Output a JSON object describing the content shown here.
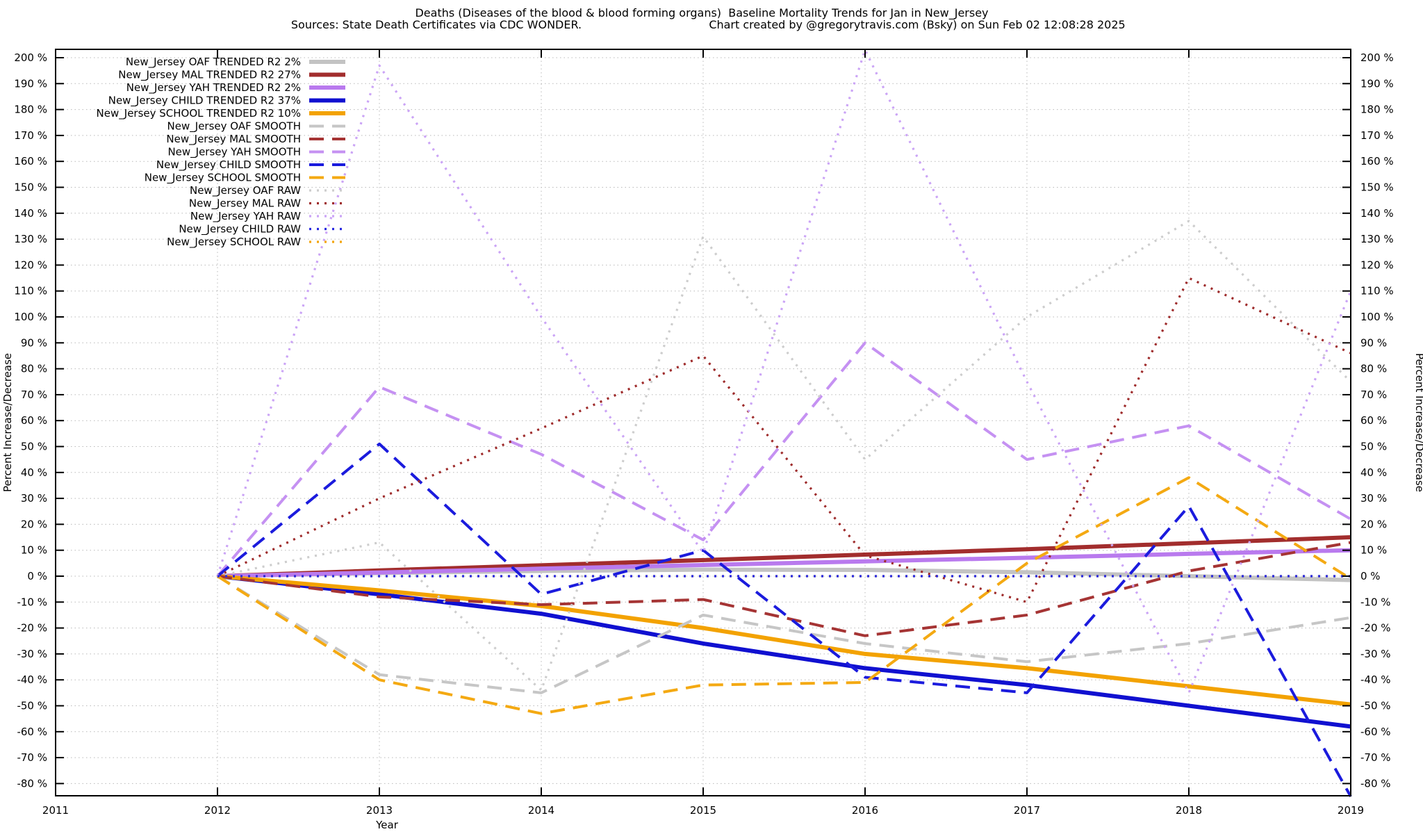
{
  "title": {
    "line1": "Deaths (Diseases of the blood & blood forming organs)  Baseline Mortality Trends for Jan in New_Jersey",
    "line2_left": "Sources: State Death Certificates via CDC WONDER.",
    "line2_right": "Chart created by @gregorytravis.com (Bsky) on Sun Feb 02 12:08:28 2025"
  },
  "chart_data": {
    "type": "line",
    "title": "Deaths (Diseases of the blood & blood forming organs)  Baseline Mortality Trends for Jan in New_Jersey",
    "xlabel": "Year",
    "ylabel_left": "Percent Increase/Decrease",
    "ylabel_right": "Percent Increase/Decrease",
    "xlim": [
      2011,
      2019
    ],
    "ylim": [
      -80,
      200
    ],
    "ytick_step": 10,
    "ytick_suffix": " %",
    "x_ticks": [
      2011,
      2012,
      2013,
      2014,
      2015,
      2016,
      2017,
      2018,
      2019
    ],
    "grid": true,
    "legend_position": "top-left",
    "x": [
      2012,
      2013,
      2014,
      2015,
      2016,
      2017,
      2018,
      2019
    ],
    "series": [
      {
        "name": "nj-oaf-trended",
        "label": "New_Jersey OAF TRENDED R2   2%",
        "style": "trended",
        "color": "#c3c3c3",
        "z": 0,
        "values": [
          0,
          1.2,
          2.0,
          2.5,
          2.4,
          1.5,
          0.0,
          -1.5
        ]
      },
      {
        "name": "nj-mal-trended",
        "label": "New_Jersey MAL TRENDED R2  27%",
        "style": "trended",
        "color": "#a22d2d",
        "z": 0,
        "values": [
          0,
          2.2,
          4.2,
          6.2,
          8.3,
          10.4,
          12.7,
          15
        ]
      },
      {
        "name": "nj-yah-trended",
        "label": "New_Jersey YAH TRENDED R2   2%",
        "style": "trended",
        "color": "#b97aee",
        "z": 0,
        "values": [
          0,
          1.4,
          2.9,
          4.3,
          5.7,
          7.1,
          8.6,
          10
        ]
      },
      {
        "name": "nj-child-trended",
        "label": "New_Jersey CHILD TRENDED R2  37%",
        "style": "trended",
        "color": "#1010d0",
        "z": 0,
        "values": [
          0,
          -7,
          -14.5,
          -26,
          -35.5,
          -42,
          -50,
          -58
        ]
      },
      {
        "name": "nj-school-trended",
        "label": "New_Jersey SCHOOL TRENDED R2  10%",
        "style": "trended",
        "color": "#f3a200",
        "z": 0,
        "values": [
          0,
          -5.5,
          -11.5,
          -20,
          -30,
          -35.5,
          -42.5,
          -49.5
        ]
      },
      {
        "name": "nj-oaf-smooth",
        "label": "New_Jersey OAF SMOOTH",
        "style": "smooth",
        "color": "#c6c6c6",
        "z": 0,
        "values": [
          0,
          -38,
          -45,
          -15,
          -26,
          -33,
          -26,
          -16
        ]
      },
      {
        "name": "nj-mal-smooth",
        "label": "New_Jersey MAL SMOOTH",
        "style": "smooth",
        "color": "#a53434",
        "z": 0,
        "values": [
          0,
          -8,
          -11,
          -9,
          -23,
          -15,
          2,
          13
        ]
      },
      {
        "name": "nj-yah-smooth",
        "label": "New_Jersey YAH SMOOTH",
        "style": "smooth",
        "color": "#c591f2",
        "z": 0,
        "values": [
          0,
          73,
          47,
          14,
          90,
          45,
          58,
          22
        ]
      },
      {
        "name": "nj-child-smooth",
        "label": "New_Jersey CHILD SMOOTH",
        "style": "smooth",
        "color": "#1b1bdd",
        "z": 0,
        "values": [
          0,
          51,
          -7,
          10,
          -39,
          -45,
          27,
          -85
        ]
      },
      {
        "name": "nj-school-smooth",
        "label": "New_Jersey SCHOOL SMOOTH",
        "style": "smooth",
        "color": "#f4a912",
        "z": 0,
        "values": [
          0,
          -40,
          -53,
          -42,
          -41,
          5,
          38,
          -1
        ]
      },
      {
        "name": "nj-oaf-raw",
        "label": "New_Jersey OAF RAW",
        "style": "raw",
        "color": "#cdcdcd",
        "z": 0,
        "values": [
          0,
          13,
          -44,
          131,
          45,
          100,
          137,
          75
        ]
      },
      {
        "name": "nj-mal-raw",
        "label": "New_Jersey MAL RAW",
        "style": "raw",
        "color": "#9e2b2b",
        "z": 0,
        "values": [
          0,
          30,
          57,
          85,
          8,
          -10,
          115,
          86
        ]
      },
      {
        "name": "nj-yah-raw",
        "label": "New_Jersey YAH RAW",
        "style": "raw",
        "color": "#cba4f6",
        "z": 0,
        "values": [
          0,
          197,
          100,
          9,
          203,
          75,
          -45,
          110
        ]
      },
      {
        "name": "nj-child-raw",
        "label": "New_Jersey CHILD RAW",
        "style": "raw",
        "color": "#2a2ae0",
        "z": 1,
        "values": [
          0,
          0,
          0,
          0,
          0,
          0,
          0,
          0
        ]
      },
      {
        "name": "nj-school-raw",
        "label": "New_Jersey SCHOOL RAW",
        "style": "raw",
        "color": "#f2a50a",
        "z": 0,
        "values": [
          0,
          0,
          0,
          0,
          0,
          0,
          0,
          0
        ]
      }
    ]
  },
  "style_colors": {
    "frame": "#000000",
    "grid": "#b8b8b8",
    "text": "#000000",
    "background": "#ffffff"
  }
}
